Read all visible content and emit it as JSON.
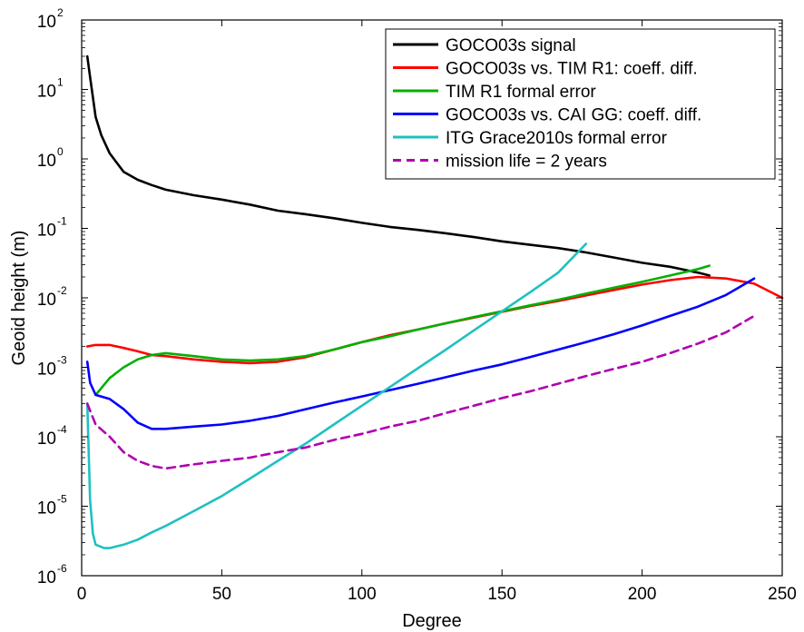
{
  "chart_data": {
    "type": "line",
    "title": "",
    "xlabel": "Degree",
    "ylabel": "Geoid height (m)",
    "xlim": [
      0,
      250
    ],
    "ylim": [
      1e-06,
      100
    ],
    "y_scale": "log",
    "x_ticks": [
      0,
      50,
      100,
      150,
      200,
      250
    ],
    "y_tick_exponents": [
      -6,
      -5,
      -4,
      -3,
      -2,
      -1,
      0,
      1,
      2
    ],
    "grid": false,
    "legend_position": "top-right",
    "series": [
      {
        "name": "GOCO03s signal",
        "color": "#000000",
        "dash": "solid",
        "x": [
          2,
          3,
          5,
          7,
          10,
          15,
          20,
          25,
          30,
          40,
          50,
          60,
          70,
          80,
          90,
          100,
          110,
          120,
          130,
          140,
          150,
          160,
          170,
          180,
          190,
          200,
          210,
          220,
          224
        ],
        "y": [
          30,
          15,
          4,
          2.2,
          1.2,
          0.65,
          0.5,
          0.42,
          0.36,
          0.3,
          0.26,
          0.22,
          0.18,
          0.16,
          0.14,
          0.12,
          0.105,
          0.095,
          0.085,
          0.075,
          0.065,
          0.058,
          0.052,
          0.045,
          0.038,
          0.032,
          0.028,
          0.023,
          0.021
        ]
      },
      {
        "name": "GOCO03s vs. TIM R1: coeff. diff.",
        "color": "#ff0000",
        "dash": "solid",
        "x": [
          2,
          5,
          10,
          15,
          20,
          25,
          30,
          40,
          50,
          60,
          70,
          80,
          90,
          100,
          110,
          120,
          130,
          140,
          150,
          160,
          170,
          180,
          190,
          200,
          210,
          220,
          230,
          240,
          250
        ],
        "y": [
          0.002,
          0.0021,
          0.0021,
          0.0019,
          0.0017,
          0.0015,
          0.00145,
          0.0013,
          0.0012,
          0.00115,
          0.0012,
          0.0014,
          0.0018,
          0.0023,
          0.0029,
          0.0035,
          0.0043,
          0.0052,
          0.0063,
          0.0076,
          0.009,
          0.0108,
          0.013,
          0.0155,
          0.018,
          0.02,
          0.019,
          0.016,
          0.01
        ]
      },
      {
        "name": "TIM R1 formal error",
        "color": "#00b000",
        "dash": "solid",
        "x": [
          5,
          10,
          15,
          20,
          25,
          30,
          40,
          50,
          60,
          70,
          80,
          90,
          100,
          110,
          120,
          130,
          140,
          150,
          160,
          170,
          180,
          190,
          200,
          210,
          220,
          224
        ],
        "y": [
          0.0004,
          0.0007,
          0.001,
          0.0013,
          0.0015,
          0.0016,
          0.00145,
          0.0013,
          0.00125,
          0.0013,
          0.00145,
          0.0018,
          0.0023,
          0.0028,
          0.0035,
          0.0043,
          0.0053,
          0.0064,
          0.0078,
          0.0094,
          0.0115,
          0.014,
          0.017,
          0.021,
          0.026,
          0.029
        ]
      },
      {
        "name": "GOCO03s vs. CAI GG: coeff. diff.",
        "color": "#0000ff",
        "dash": "solid",
        "x": [
          2,
          3,
          5,
          10,
          15,
          20,
          25,
          30,
          40,
          50,
          60,
          70,
          80,
          90,
          100,
          110,
          120,
          130,
          140,
          150,
          160,
          170,
          180,
          190,
          200,
          210,
          220,
          230,
          240
        ],
        "y": [
          0.0012,
          0.0006,
          0.0004,
          0.00035,
          0.00025,
          0.00016,
          0.00013,
          0.00013,
          0.00014,
          0.00015,
          0.00017,
          0.0002,
          0.00025,
          0.00031,
          0.00038,
          0.00047,
          0.00058,
          0.00072,
          0.0009,
          0.0011,
          0.0014,
          0.0018,
          0.0023,
          0.003,
          0.004,
          0.0055,
          0.0075,
          0.011,
          0.019
        ]
      },
      {
        "name": "ITG Grace2010s formal error",
        "color": "#20c0c0",
        "dash": "solid",
        "x": [
          2,
          3,
          4,
          5,
          8,
          10,
          15,
          20,
          25,
          30,
          40,
          50,
          60,
          70,
          80,
          90,
          100,
          110,
          120,
          130,
          140,
          150,
          160,
          170,
          180
        ],
        "y": [
          0.0003,
          1.2e-05,
          4e-06,
          2.8e-06,
          2.5e-06,
          2.5e-06,
          2.8e-06,
          3.3e-06,
          4.2e-06,
          5.2e-06,
          8.5e-06,
          1.4e-05,
          2.5e-05,
          4.5e-05,
          8e-05,
          0.00015,
          0.00028,
          0.00052,
          0.00097,
          0.0018,
          0.0034,
          0.0064,
          0.012,
          0.023,
          0.06
        ]
      },
      {
        "name": "mission life = 2 years",
        "color": "#b000b0",
        "dash": "dashed",
        "x": [
          2,
          5,
          10,
          15,
          20,
          25,
          30,
          40,
          50,
          60,
          70,
          80,
          90,
          100,
          110,
          120,
          130,
          140,
          150,
          160,
          170,
          180,
          190,
          200,
          210,
          220,
          230,
          240
        ],
        "y": [
          0.0003,
          0.00015,
          0.0001,
          6e-05,
          4.5e-05,
          3.8e-05,
          3.5e-05,
          4e-05,
          4.5e-05,
          5e-05,
          6e-05,
          7e-05,
          9e-05,
          0.00011,
          0.00014,
          0.00017,
          0.00022,
          0.00028,
          0.00036,
          0.00045,
          0.00058,
          0.00075,
          0.00095,
          0.0012,
          0.0016,
          0.0022,
          0.0032,
          0.0055
        ]
      }
    ]
  }
}
